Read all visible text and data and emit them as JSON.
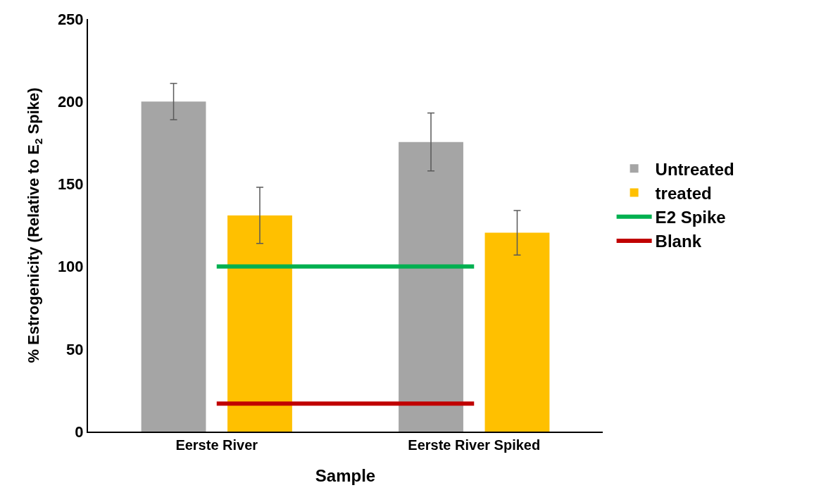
{
  "chart_data": {
    "type": "bar",
    "xlabel": "Sample",
    "ylabel": "% Estrogenicity (Relative to E$_{2}$ Spike)",
    "categories": [
      "Eerste River",
      "Eerste River Spiked"
    ],
    "series": [
      {
        "name": "Untreated",
        "color": "#a5a5a5",
        "values": [
          200,
          175.5
        ],
        "errors": [
          11,
          17.5
        ]
      },
      {
        "name": "treated",
        "color": "#ffc000",
        "values": [
          131,
          120.5
        ],
        "errors": [
          17,
          13.5
        ]
      },
      {
        "name": "E2 Spike",
        "type": "line",
        "color": "#00b050",
        "values": [
          100,
          100
        ]
      },
      {
        "name": "Blank",
        "type": "line",
        "color": "#c00000",
        "values": [
          17,
          17
        ]
      }
    ],
    "ylim": [
      0,
      250
    ],
    "yticks": [
      0,
      50,
      100,
      150,
      200,
      250
    ],
    "grid": false,
    "legend": "right",
    "marker": "none",
    "line_style": "solid"
  }
}
